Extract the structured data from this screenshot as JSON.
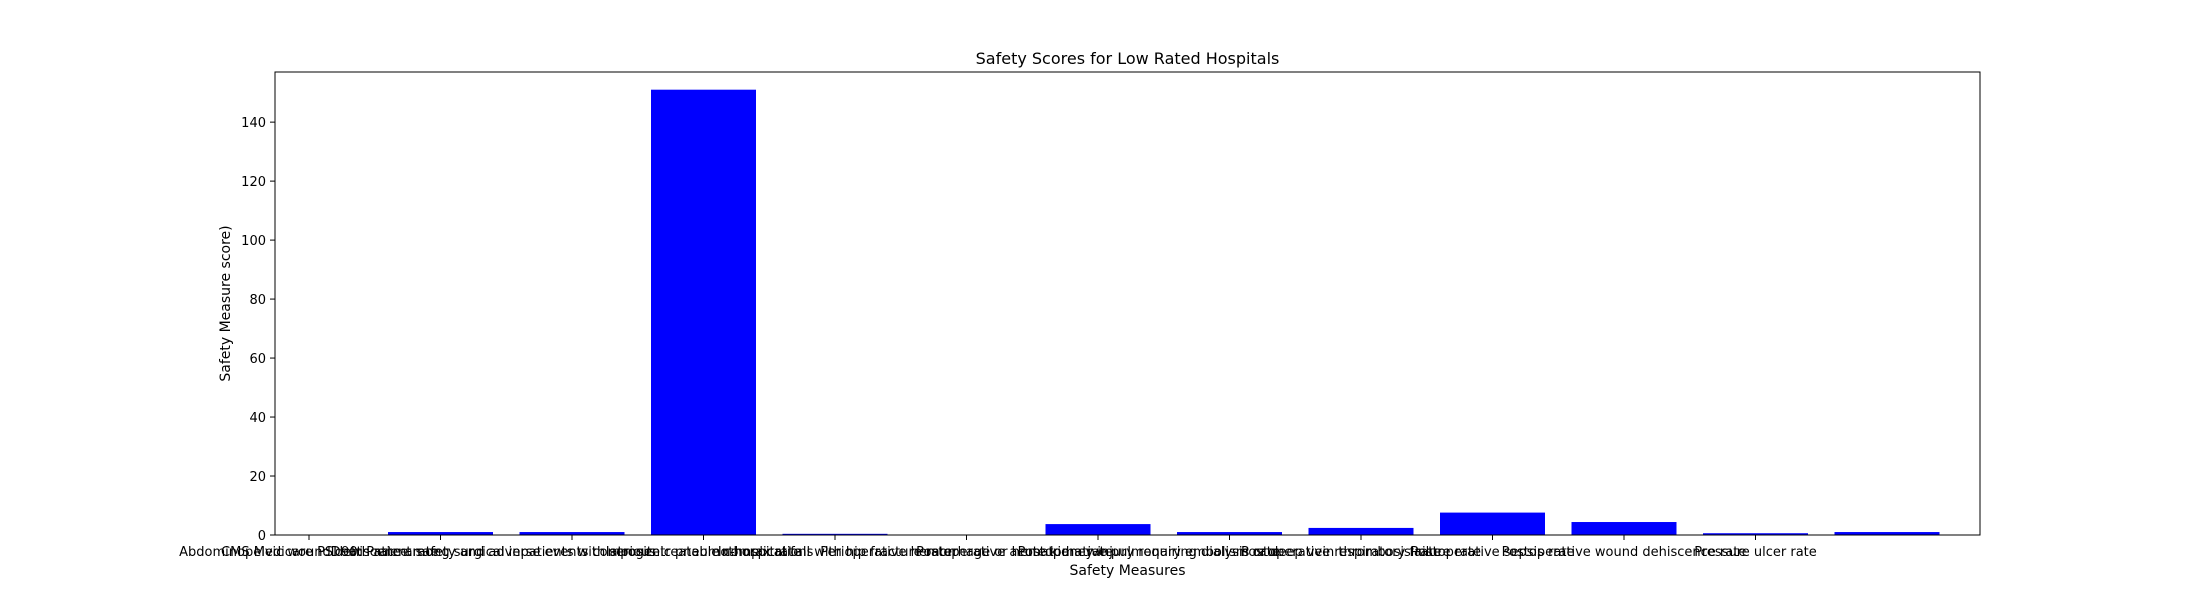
{
  "chart_data": {
    "type": "bar",
    "title": "Safety Scores for Low Rated Hospitals",
    "xlabel": "Safety Measures",
    "ylabel": "Safety Measure score)",
    "categories": [
      "Abdominopelvic wound dehiscence rate",
      "CMS Medicare PSI 90: Patient safety and adverse events composite",
      "Death rate among surgical inpatients with serious treatable complications",
      "Iatrogenic pneumothorax rate",
      "In-hospital fall with hip fracture rate",
      "Perioperative hemorrhage or hematoma rate",
      "Postoperative acute kidney injury requiring dialysis rate",
      "Postoperative pulmonary embolism or deep vein thrombosis rate",
      "Postoperative respiratory failure rate",
      "Postoperative sepsis rate",
      "Postoperative wound dehiscence rate",
      "Pressure ulcer rate",
      "Pressure ulcer rate"
    ],
    "tick_labels": [
      "Abdominopelvic wound dehiscence rate",
      "CMS Medicare PSI 90: Patient safety and adverse events composite",
      "Death rate among surgical inpatients with serious treatable complications",
      "Iatrogenic pneumothorax rate",
      "In-hospital fall with hip fracture rate",
      "Perioperative hemorrhage or hematoma rate",
      "Postoperative acute kidney injury requiring dialysis rate",
      "Postoperative pulmonary embolism or deep vein thrombosis rate",
      "Postoperative respiratory failure rate",
      "Postoperative sepsis rate",
      "Postoperative wound dehiscence rate",
      "Pressure ulcer rate"
    ],
    "values": [
      0,
      1.0,
      1.0,
      151.0,
      0.4,
      0.0,
      3.7,
      1.0,
      2.4,
      7.6,
      4.4,
      0.6,
      1.0
    ],
    "ylim": [
      0,
      157
    ],
    "yticks": [
      0,
      20,
      40,
      60,
      80,
      100,
      120,
      140
    ],
    "bar_color": "#0000ff",
    "grid": false,
    "legend": "none"
  }
}
